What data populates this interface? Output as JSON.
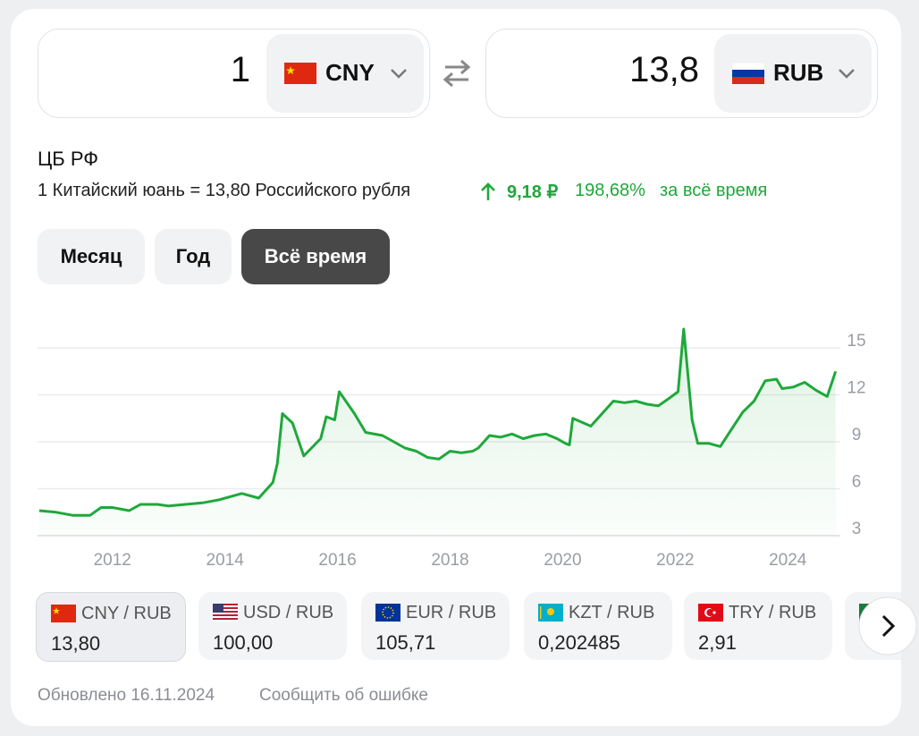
{
  "converter": {
    "from": {
      "amount": "1",
      "currency": "CNY"
    },
    "to": {
      "amount": "13,8",
      "currency": "RUB"
    }
  },
  "source": "ЦБ РФ",
  "rate_text": "1 Китайский юань = 13,80 Российского рубля",
  "change": {
    "abs": "9,18 ₽",
    "pct": "198,68%",
    "period": "за всё время"
  },
  "periods": [
    "Месяц",
    "Год",
    "Всё время"
  ],
  "chart_data": {
    "type": "line",
    "color": "#1fa83b",
    "grid": true,
    "x": [
      2010.7,
      2011.0,
      2011.3,
      2011.6,
      2011.8,
      2012.0,
      2012.3,
      2012.5,
      2012.8,
      2013.0,
      2013.3,
      2013.6,
      2013.9,
      2014.1,
      2014.3,
      2014.6,
      2014.85,
      2014.93,
      2015.02,
      2015.2,
      2015.4,
      2015.7,
      2015.8,
      2015.95,
      2016.03,
      2016.3,
      2016.5,
      2016.8,
      2017.0,
      2017.2,
      2017.4,
      2017.6,
      2017.8,
      2018.0,
      2018.2,
      2018.4,
      2018.5,
      2018.7,
      2018.9,
      2019.1,
      2019.3,
      2019.5,
      2019.7,
      2019.9,
      2020.05,
      2020.12,
      2020.18,
      2020.5,
      2020.7,
      2020.9,
      2021.1,
      2021.3,
      2021.5,
      2021.7,
      2021.9,
      2022.05,
      2022.15,
      2022.3,
      2022.4,
      2022.6,
      2022.8,
      2023.0,
      2023.2,
      2023.4,
      2023.6,
      2023.8,
      2023.9,
      2024.1,
      2024.3,
      2024.5,
      2024.7,
      2024.85
    ],
    "values": [
      4.6,
      4.5,
      4.3,
      4.3,
      4.8,
      4.8,
      4.6,
      5.0,
      5.0,
      4.9,
      5.0,
      5.1,
      5.3,
      5.5,
      5.7,
      5.4,
      6.4,
      7.6,
      10.8,
      10.2,
      8.1,
      9.2,
      10.6,
      10.4,
      12.2,
      10.8,
      9.6,
      9.4,
      9.0,
      8.6,
      8.4,
      8.0,
      7.9,
      8.4,
      8.3,
      8.4,
      8.6,
      9.4,
      9.3,
      9.5,
      9.2,
      9.4,
      9.5,
      9.2,
      8.9,
      8.8,
      10.5,
      10.0,
      10.8,
      11.6,
      11.5,
      11.6,
      11.4,
      11.3,
      11.8,
      12.2,
      16.2,
      10.4,
      8.9,
      8.9,
      8.7,
      9.8,
      10.9,
      11.6,
      12.9,
      13.0,
      12.4,
      12.5,
      12.8,
      12.3,
      11.9,
      13.5
    ],
    "xlim": [
      2010.67,
      2024.87
    ],
    "xticks": [
      2012,
      2014,
      2016,
      2018,
      2020,
      2022,
      2024
    ],
    "ylim": [
      3,
      17
    ],
    "yticks": [
      3,
      6,
      9,
      12,
      15
    ]
  },
  "pairs": [
    {
      "pair": "CNY / RUB",
      "rate": "13,80"
    },
    {
      "pair": "USD / RUB",
      "rate": "100,00"
    },
    {
      "pair": "EUR / RUB",
      "rate": "105,71"
    },
    {
      "pair": "KZT / RUB",
      "rate": "0,202485"
    },
    {
      "pair": "TRY / RUB",
      "rate": "2,91"
    }
  ],
  "footer": {
    "updated": "Обновлено 16.11.2024",
    "report": "Сообщить об ошибке"
  }
}
